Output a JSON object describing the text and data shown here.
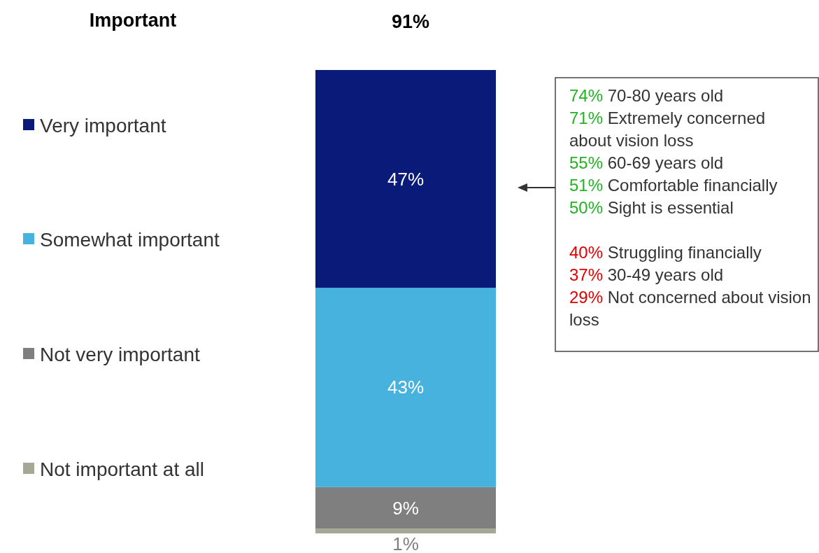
{
  "chart_data": {
    "type": "bar",
    "title": "Important",
    "stacked": true,
    "legend": "left",
    "categories": [
      null
    ],
    "series": [
      {
        "name": "Not important at all",
        "color": "#a6a896",
        "values": [
          1
        ],
        "value_labels": [
          "1%"
        ]
      },
      {
        "name": "Not very important",
        "color": "#7f7f7f",
        "values": [
          9
        ],
        "value_labels": [
          "9%"
        ]
      },
      {
        "name": "Somewhat important",
        "color": "#47b2de",
        "values": [
          43
        ],
        "value_labels": [
          "43%"
        ]
      },
      {
        "name": "Very important",
        "color": "#0a1a78",
        "values": [
          47
        ],
        "value_labels": [
          "47%"
        ]
      }
    ],
    "annotations": [
      "91%",
      "74% 70-80 years old",
      "71% Extremely concerned about vision loss",
      "55% 60-69 years old",
      "51% Comfortable financially",
      "50% Sight is essential",
      "40% Struggling financially",
      "37% 30-49 years old",
      "29% Not concerned about vision loss"
    ]
  }
}
